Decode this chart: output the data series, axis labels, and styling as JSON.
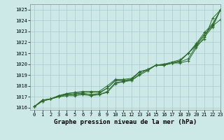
{
  "bg_color": "#cce9e8",
  "grid_color": "#aacccc",
  "line_color": "#2d6b2d",
  "marker": "+",
  "title": "Graphe pression niveau de la mer (hPa)",
  "xlim": [
    -0.5,
    23
  ],
  "ylim": [
    1015.8,
    1025.5
  ],
  "yticks": [
    1016,
    1017,
    1018,
    1019,
    1020,
    1021,
    1022,
    1023,
    1024,
    1025
  ],
  "xticks": [
    0,
    1,
    2,
    3,
    4,
    5,
    6,
    7,
    8,
    9,
    10,
    11,
    12,
    13,
    14,
    15,
    16,
    17,
    18,
    19,
    20,
    21,
    22,
    23
  ],
  "series": [
    [
      1016.1,
      1016.7,
      1016.8,
      1017.1,
      1017.2,
      1017.2,
      1017.3,
      1017.2,
      1017.3,
      1017.8,
      1018.5,
      1018.5,
      1018.6,
      1019.3,
      1019.5,
      1019.9,
      1019.9,
      1020.1,
      1020.2,
      1020.5,
      1021.7,
      1022.7,
      1023.5,
      1024.1
    ],
    [
      1016.1,
      1016.6,
      1016.8,
      1017.0,
      1017.1,
      1017.1,
      1017.2,
      1017.1,
      1017.2,
      1017.5,
      1018.3,
      1018.4,
      1018.5,
      1019.0,
      1019.4,
      1019.9,
      1020.0,
      1020.1,
      1020.1,
      1020.3,
      1021.5,
      1022.5,
      1023.4,
      1025.0
    ],
    [
      1016.1,
      1016.6,
      1016.8,
      1017.0,
      1017.2,
      1017.3,
      1017.3,
      1017.2,
      1017.2,
      1017.4,
      1018.2,
      1018.4,
      1018.5,
      1019.1,
      1019.5,
      1019.9,
      1019.9,
      1020.1,
      1020.3,
      1021.0,
      1021.7,
      1022.3,
      1024.2,
      1025.0
    ],
    [
      1016.1,
      1016.7,
      1016.8,
      1017.1,
      1017.3,
      1017.4,
      1017.4,
      1017.4,
      1017.4,
      1017.8,
      1018.5,
      1018.5,
      1018.6,
      1019.3,
      1019.5,
      1019.9,
      1019.9,
      1020.1,
      1020.3,
      1021.0,
      1021.8,
      1022.7,
      1023.6,
      1025.0
    ],
    [
      1016.1,
      1016.7,
      1016.8,
      1017.1,
      1017.3,
      1017.4,
      1017.5,
      1017.5,
      1017.5,
      1018.0,
      1018.6,
      1018.6,
      1018.7,
      1019.3,
      1019.5,
      1019.9,
      1020.0,
      1020.2,
      1020.4,
      1021.0,
      1021.9,
      1022.9,
      1023.7,
      1025.0
    ]
  ]
}
